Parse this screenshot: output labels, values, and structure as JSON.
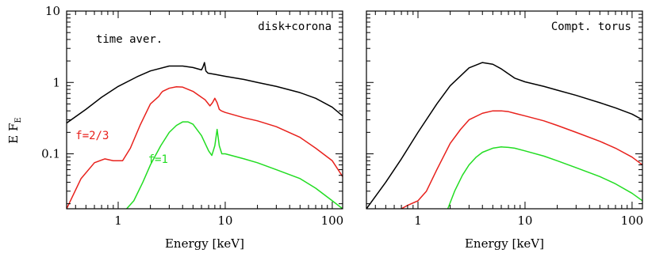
{
  "chart_data": {
    "type": "line",
    "ylabel": "E F",
    "ylabel_sub": "E",
    "y_scale": "log",
    "x_scale": "log",
    "ylim": [
      0.017,
      10
    ],
    "y_ticks": [
      {
        "v": 0.1,
        "label": "0.1"
      },
      {
        "v": 1,
        "label": "1"
      },
      {
        "v": 10,
        "label": "10"
      }
    ],
    "panels": [
      {
        "id": "disk-corona",
        "annotation": "disk+corona",
        "xlabel": "Energy [keV]",
        "xlim": [
          0.33,
          125
        ],
        "x_ticks": [
          {
            "v": 1,
            "label": "1"
          },
          {
            "v": 10,
            "label": "10"
          },
          {
            "v": 100,
            "label": "100"
          }
        ],
        "curve_labels": [
          {
            "text": "time aver.",
            "color": "#000000",
            "x": 0.62,
            "y": 3.6
          },
          {
            "text": "f=2/3",
            "color": "#e8211c",
            "x": 0.4,
            "y": 0.16
          },
          {
            "text": "f=1",
            "color": "#22dd22",
            "x": 1.9,
            "y": 0.075
          }
        ],
        "series": [
          {
            "color": "#000000",
            "x": [
              0.33,
              0.5,
              0.7,
              1.0,
              1.5,
              2.0,
              3.0,
              4.0,
              5.0,
              6.0,
              6.2,
              6.4,
              6.6,
              6.9,
              8.0,
              10,
              15,
              20,
              30,
              50,
              70,
              100,
              125
            ],
            "y": [
              0.27,
              0.42,
              0.62,
              0.88,
              1.2,
              1.45,
              1.7,
              1.7,
              1.62,
              1.5,
              1.65,
              1.9,
              1.45,
              1.35,
              1.3,
              1.22,
              1.1,
              1.0,
              0.88,
              0.72,
              0.6,
              0.45,
              0.34
            ]
          },
          {
            "color": "#e8211c",
            "x": [
              0.33,
              0.45,
              0.6,
              0.75,
              0.9,
              1.1,
              1.3,
              1.6,
              2.0,
              2.4,
              2.5,
              2.6,
              3.0,
              3.5,
              4.0,
              5.0,
              6.5,
              7.2,
              7.6,
              8.0,
              8.4,
              8.8,
              9.2,
              10,
              15,
              20,
              30,
              50,
              70,
              100,
              125
            ],
            "y": [
              0.017,
              0.045,
              0.075,
              0.085,
              0.08,
              0.08,
              0.12,
              0.25,
              0.5,
              0.64,
              0.7,
              0.75,
              0.83,
              0.87,
              0.86,
              0.75,
              0.57,
              0.47,
              0.52,
              0.6,
              0.52,
              0.42,
              0.4,
              0.38,
              0.32,
              0.29,
              0.24,
              0.17,
              0.12,
              0.08,
              0.048
            ]
          },
          {
            "color": "#22dd22",
            "x": [
              1.2,
              1.4,
              1.7,
              2.0,
              2.5,
              3.0,
              3.5,
              4.0,
              4.5,
              5.0,
              6.0,
              7.0,
              7.5,
              8.0,
              8.4,
              8.8,
              9.3,
              10,
              15,
              20,
              30,
              50,
              70,
              100,
              125
            ],
            "y": [
              0.017,
              0.022,
              0.04,
              0.07,
              0.13,
              0.2,
              0.25,
              0.28,
              0.28,
              0.26,
              0.18,
              0.11,
              0.095,
              0.13,
              0.22,
              0.13,
              0.1,
              0.1,
              0.085,
              0.075,
              0.06,
              0.045,
              0.033,
              0.022,
              0.017
            ]
          }
        ]
      },
      {
        "id": "compt-torus",
        "annotation": "Compt. torus",
        "xlabel": "Energy [keV]",
        "xlim": [
          0.33,
          125
        ],
        "x_ticks": [
          {
            "v": 1,
            "label": "1"
          },
          {
            "v": 10,
            "label": "10"
          },
          {
            "v": 100,
            "label": "100"
          }
        ],
        "curve_labels": [],
        "series": [
          {
            "color": "#000000",
            "x": [
              0.33,
              0.5,
              0.7,
              1.0,
              1.5,
              2.0,
              3.0,
              4.0,
              5.0,
              6.0,
              7.0,
              8.0,
              10,
              15,
              20,
              30,
              50,
              70,
              100,
              125
            ],
            "y": [
              0.017,
              0.04,
              0.085,
              0.2,
              0.5,
              0.9,
              1.6,
              1.9,
              1.8,
              1.55,
              1.32,
              1.15,
              1.02,
              0.88,
              0.78,
              0.66,
              0.52,
              0.44,
              0.36,
              0.3
            ]
          },
          {
            "color": "#e8211c",
            "x": [
              0.7,
              0.8,
              1.0,
              1.2,
              1.5,
              2.0,
              2.5,
              3.0,
              4.0,
              5.0,
              6.0,
              7.0,
              8.0,
              10,
              15,
              20,
              30,
              50,
              70,
              100,
              125
            ],
            "y": [
              0.017,
              0.019,
              0.022,
              0.03,
              0.06,
              0.14,
              0.22,
              0.3,
              0.37,
              0.4,
              0.4,
              0.39,
              0.37,
              0.34,
              0.29,
              0.25,
              0.2,
              0.15,
              0.12,
              0.09,
              0.07
            ]
          },
          {
            "color": "#22dd22",
            "x": [
              1.9,
              2.2,
              2.6,
              3.0,
              3.5,
              4.0,
              5.0,
              6.0,
              7.0,
              8.0,
              10,
              15,
              20,
              30,
              50,
              70,
              100,
              125
            ],
            "y": [
              0.017,
              0.03,
              0.05,
              0.07,
              0.09,
              0.105,
              0.12,
              0.125,
              0.123,
              0.12,
              0.11,
              0.093,
              0.08,
              0.064,
              0.048,
              0.038,
              0.028,
              0.022
            ]
          }
        ]
      }
    ]
  }
}
